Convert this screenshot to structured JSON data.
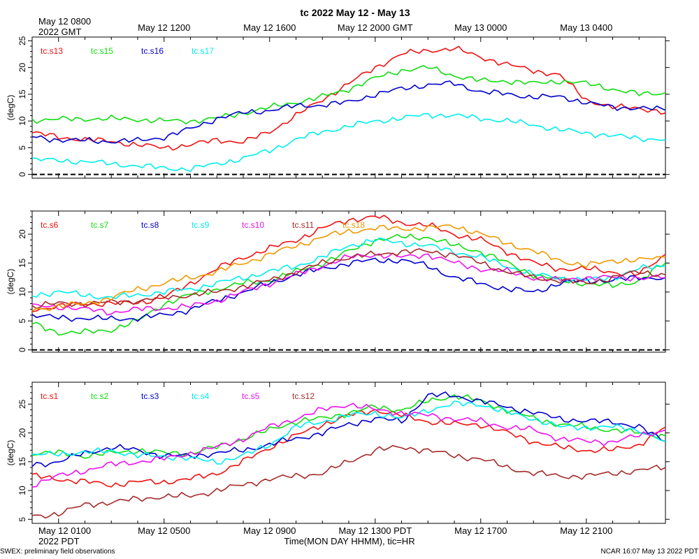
{
  "title": "tc 2022 May 12 - May 13",
  "top_axis": {
    "start_label": [
      "May 12 0800",
      "2022 GMT"
    ],
    "tick_labels": [
      "May 12 1200",
      "May 12 1600",
      "May 12 2000 GMT",
      "May 13 0000",
      "May 13 0400"
    ]
  },
  "bottom_axis": {
    "start_label": [
      "May 12 0100",
      "2022 PDT"
    ],
    "tick_labels": [
      "May 12 0500",
      "May 12 0900",
      "May 12 1300 PDT",
      "May 12 1700",
      "May 12 2100"
    ],
    "xlabel": "Time(MON DAY HHMM), tic=HR"
  },
  "footer_left": "SWEX: preliminary field observations",
  "footer_right": "NCAR 16:07 May 13 2022 PDT",
  "colors": {
    "red": "#ee1111",
    "green": "#11dd11",
    "blue": "#0000cc",
    "cyan": "#00eeee",
    "magenta": "#ee11ee",
    "brown": "#a52a2a",
    "orange": "#ee9900"
  },
  "chart_data": [
    {
      "type": "line",
      "ylabel": "(degC)",
      "ylim": [
        -0.7,
        25.7
      ],
      "yticks": [
        0,
        5,
        10,
        15,
        20,
        25
      ],
      "zero_line": true,
      "x_unit": "hours since May 12 0100 PDT",
      "x": [
        0,
        1,
        2,
        3,
        4,
        5,
        6,
        7,
        8,
        9,
        10,
        11,
        12,
        13,
        14,
        15,
        16,
        17,
        18,
        19,
        20,
        21,
        22,
        23,
        24
      ],
      "series": [
        {
          "name": "tc.s13",
          "color": "red",
          "values": [
            7.8,
            7.0,
            6.5,
            6.2,
            5.5,
            5.0,
            5.5,
            6.5,
            6.0,
            8.0,
            11.0,
            14.0,
            17.0,
            20.0,
            22.5,
            23.2,
            23.5,
            22.0,
            20.5,
            19.5,
            18.5,
            14.0,
            12.5,
            12.5,
            11.5
          ]
        },
        {
          "name": "tc.s15",
          "color": "green",
          "values": [
            10.2,
            10.3,
            10.4,
            10.4,
            10.3,
            10.0,
            10.0,
            10.5,
            11.5,
            12.5,
            13.5,
            14.5,
            16.0,
            18.0,
            19.5,
            20.0,
            18.5,
            17.5,
            17.5,
            17.0,
            17.5,
            17.0,
            16.0,
            15.0,
            15.3
          ]
        },
        {
          "name": "tc.s16",
          "color": "blue",
          "values": [
            7.0,
            6.5,
            6.3,
            6.2,
            6.3,
            7.0,
            8.5,
            10.5,
            11.5,
            12.0,
            12.8,
            13.0,
            13.5,
            15.0,
            16.0,
            16.8,
            17.0,
            15.5,
            15.0,
            14.5,
            14.5,
            13.5,
            12.5,
            12.5,
            12.0
          ]
        },
        {
          "name": "tc.s17",
          "color": "cyan",
          "values": [
            2.8,
            2.6,
            2.4,
            2.0,
            1.6,
            1.2,
            1.0,
            2.0,
            3.0,
            4.5,
            6.5,
            8.0,
            9.0,
            10.0,
            10.5,
            11.2,
            11.0,
            10.5,
            10.0,
            9.3,
            8.3,
            7.8,
            7.2,
            6.8,
            6.5
          ]
        }
      ]
    },
    {
      "type": "line",
      "ylabel": "(degC)",
      "ylim": [
        -0.4,
        24.0
      ],
      "yticks": [
        0,
        5,
        10,
        15,
        20
      ],
      "zero_line": true,
      "x_unit": "hours since May 12 0100 PDT",
      "x": [
        0,
        1,
        2,
        3,
        4,
        5,
        6,
        7,
        8,
        9,
        10,
        11,
        12,
        13,
        14,
        15,
        16,
        17,
        18,
        19,
        20,
        21,
        22,
        23,
        24
      ],
      "series": [
        {
          "name": "tc.s6",
          "color": "red",
          "values": [
            7.0,
            7.5,
            8.0,
            8.0,
            8.2,
            9.0,
            11.5,
            14.0,
            16.0,
            17.5,
            19.0,
            21.0,
            22.5,
            23.0,
            22.0,
            21.5,
            20.0,
            19.0,
            17.0,
            15.0,
            14.0,
            14.0,
            13.5,
            13.0,
            16.5
          ]
        },
        {
          "name": "tc.s7",
          "color": "green",
          "values": [
            4.5,
            3.0,
            3.0,
            3.5,
            5.0,
            8.0,
            9.5,
            10.5,
            11.5,
            12.0,
            13.5,
            15.0,
            17.0,
            19.0,
            19.5,
            19.5,
            18.0,
            17.0,
            15.0,
            13.0,
            12.0,
            11.5,
            11.0,
            12.0,
            15.0
          ]
        },
        {
          "name": "tc.s8",
          "color": "blue",
          "values": [
            6.0,
            5.5,
            5.5,
            5.3,
            5.5,
            6.0,
            7.0,
            8.5,
            10.0,
            11.5,
            13.0,
            14.0,
            15.0,
            15.5,
            15.5,
            14.5,
            12.5,
            11.5,
            10.5,
            10.0,
            11.5,
            12.0,
            12.0,
            12.5,
            12.5
          ]
        },
        {
          "name": "tc.s9",
          "color": "cyan",
          "values": [
            9.5,
            10.0,
            9.5,
            9.0,
            9.5,
            10.0,
            10.5,
            11.5,
            12.5,
            13.5,
            14.5,
            16.0,
            18.0,
            19.0,
            18.5,
            18.0,
            17.0,
            16.0,
            14.5,
            13.0,
            12.5,
            12.0,
            12.5,
            14.0,
            14.5
          ]
        },
        {
          "name": "tc.s10",
          "color": "magenta",
          "values": [
            7.5,
            7.5,
            7.0,
            6.5,
            7.0,
            7.2,
            7.5,
            8.5,
            10.0,
            11.5,
            13.0,
            14.5,
            16.0,
            16.5,
            16.0,
            16.5,
            15.0,
            14.0,
            13.5,
            12.5,
            12.0,
            12.5,
            12.5,
            12.5,
            12.5
          ]
        },
        {
          "name": "tc.s11",
          "color": "brown",
          "values": [
            7.5,
            8.0,
            8.0,
            8.2,
            8.5,
            9.0,
            9.5,
            10.0,
            11.0,
            12.0,
            13.5,
            15.0,
            16.0,
            16.5,
            17.0,
            17.0,
            16.5,
            15.0,
            13.5,
            12.5,
            12.0,
            11.5,
            12.5,
            13.5,
            13.0
          ]
        },
        {
          "name": "tc.s18",
          "color": "orange",
          "values": [
            7.0,
            7.5,
            8.0,
            9.0,
            10.5,
            11.5,
            12.5,
            13.5,
            15.0,
            16.5,
            18.0,
            19.5,
            20.5,
            21.0,
            21.0,
            21.0,
            21.5,
            20.0,
            18.5,
            17.0,
            15.5,
            14.5,
            15.5,
            15.5,
            16.0
          ]
        }
      ]
    },
    {
      "type": "line",
      "ylabel": "(degC)",
      "ylim": [
        4.3,
        28.8
      ],
      "yticks": [
        5,
        10,
        15,
        20,
        25
      ],
      "zero_line": false,
      "x_unit": "hours since May 12 0100 PDT",
      "x": [
        0,
        1,
        2,
        3,
        4,
        5,
        6,
        7,
        8,
        9,
        10,
        11,
        12,
        13,
        14,
        15,
        16,
        17,
        18,
        19,
        20,
        21,
        22,
        23,
        24
      ],
      "series": [
        {
          "name": "tc.s1",
          "color": "red",
          "values": [
            12.5,
            12.0,
            11.5,
            11.0,
            11.5,
            11.5,
            12.0,
            13.0,
            15.0,
            17.5,
            19.5,
            21.5,
            23.0,
            24.0,
            23.0,
            22.0,
            21.5,
            21.5,
            20.0,
            18.5,
            17.5,
            17.0,
            17.0,
            18.0,
            21.0
          ]
        },
        {
          "name": "tc.s2",
          "color": "green",
          "values": [
            16.5,
            16.5,
            16.0,
            16.5,
            17.0,
            16.5,
            16.5,
            17.5,
            19.0,
            20.5,
            22.0,
            22.5,
            23.5,
            24.5,
            24.0,
            25.5,
            26.5,
            25.5,
            24.0,
            22.5,
            21.5,
            21.0,
            20.5,
            20.0,
            19.5
          ]
        },
        {
          "name": "tc.s3",
          "color": "blue",
          "values": [
            14.5,
            15.0,
            16.5,
            17.5,
            17.0,
            16.0,
            16.0,
            16.5,
            17.0,
            18.0,
            19.0,
            20.0,
            21.5,
            22.5,
            22.0,
            26.5,
            26.5,
            25.5,
            24.5,
            23.5,
            22.5,
            22.0,
            22.0,
            21.0,
            18.5
          ]
        },
        {
          "name": "tc.s4",
          "color": "cyan",
          "values": [
            16.0,
            16.5,
            16.5,
            17.0,
            16.0,
            16.0,
            15.5,
            15.0,
            16.0,
            18.0,
            21.0,
            22.0,
            23.0,
            23.5,
            22.5,
            24.0,
            25.0,
            25.0,
            23.5,
            22.5,
            21.0,
            21.0,
            21.0,
            20.5,
            18.5
          ]
        },
        {
          "name": "tc.s5",
          "color": "magenta",
          "values": [
            11.0,
            12.5,
            13.5,
            14.5,
            15.0,
            15.5,
            16.5,
            17.5,
            19.0,
            21.0,
            22.5,
            24.0,
            25.0,
            24.0,
            23.5,
            23.0,
            22.5,
            22.0,
            21.0,
            20.5,
            19.0,
            18.5,
            18.5,
            19.5,
            20.5
          ]
        },
        {
          "name": "tc.s12",
          "color": "brown",
          "values": [
            5.5,
            6.0,
            7.5,
            8.0,
            8.5,
            9.0,
            9.0,
            10.0,
            11.0,
            12.0,
            12.5,
            13.0,
            15.0,
            17.0,
            17.5,
            17.0,
            16.0,
            15.5,
            14.0,
            13.0,
            12.5,
            12.5,
            13.0,
            13.5,
            14.0
          ]
        }
      ]
    }
  ]
}
